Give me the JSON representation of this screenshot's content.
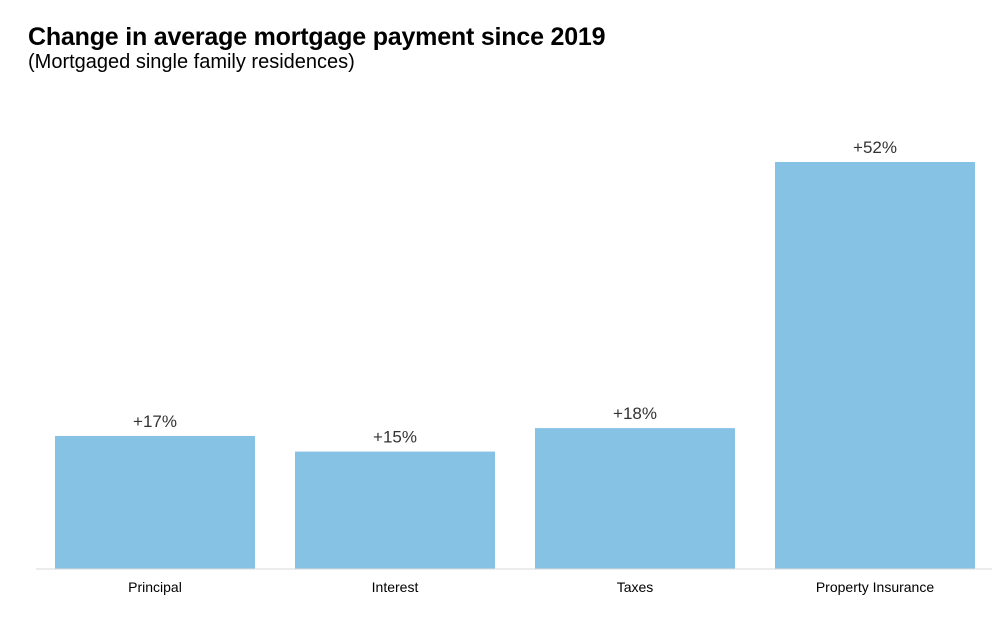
{
  "chart_data": {
    "type": "bar",
    "title": "Change in average mortgage payment since 2019",
    "subtitle": "(Mortgaged single family residences)",
    "categories": [
      "Principal",
      "Interest",
      "Taxes",
      "Property Insurance"
    ],
    "values": [
      17,
      15,
      18,
      52
    ],
    "data_labels": [
      "+17%",
      "+15%",
      "+18%",
      "+52%"
    ],
    "unit": "%",
    "xlabel": "",
    "ylabel": "",
    "ylim": [
      0,
      52
    ],
    "grid": false,
    "legend": "none",
    "colors": {
      "bar": "#86c2e4",
      "baseline": "#d9d9d9",
      "label": "#333333",
      "tick": "#000000"
    }
  }
}
